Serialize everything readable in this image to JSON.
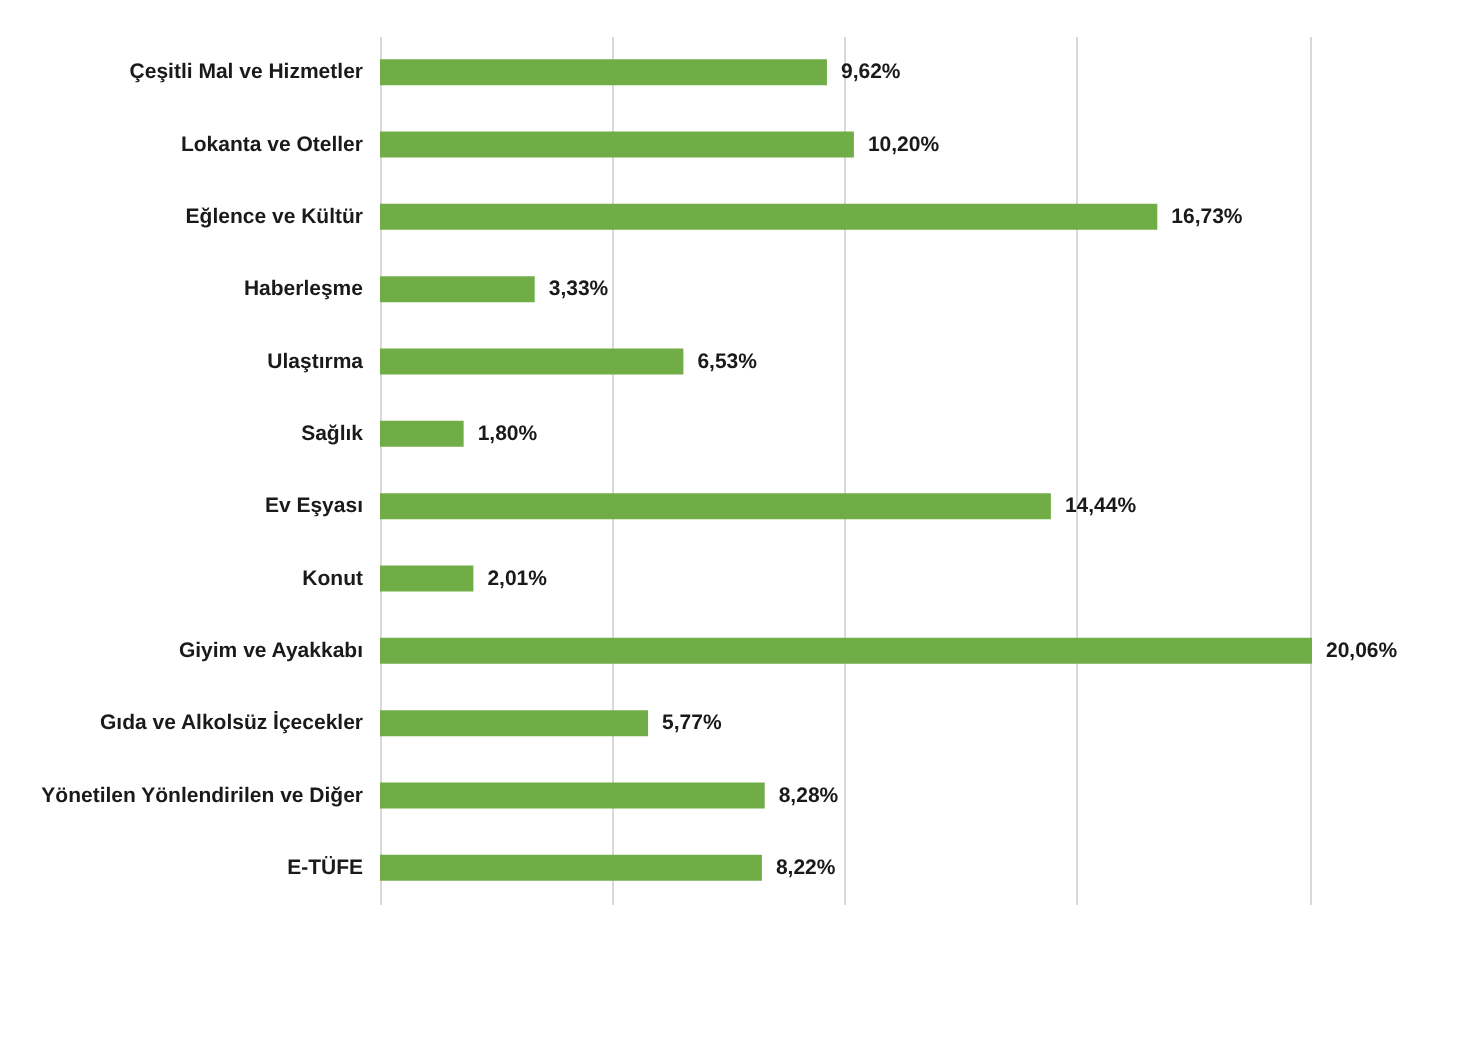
{
  "chart_data": {
    "type": "bar",
    "orientation": "horizontal",
    "categories": [
      "Çeşitli Mal ve Hizmetler",
      "Lokanta ve Oteller",
      "Eğlence ve Kültür",
      "Haberleşme",
      "Ulaştırma",
      "Sağlık",
      "Ev Eşyası",
      "Konut",
      "Giyim ve Ayakkabı",
      "Gıda ve Alkolsüz İçecekler",
      "Yönetilen Yönlendirilen ve Diğer",
      "E-TÜFE"
    ],
    "values": [
      9.62,
      10.2,
      16.73,
      3.33,
      6.53,
      1.8,
      14.44,
      2.01,
      20.06,
      5.77,
      8.28,
      8.22
    ],
    "value_labels": [
      "9,62%",
      "10,20%",
      "16,73%",
      "3,33%",
      "6,53%",
      "1,80%",
      "14,44%",
      "2,01%",
      "20,06%",
      "5,77%",
      "8,28%",
      "8,22%"
    ],
    "color": "#70ad47",
    "xticks": [
      {
        "value": 0,
        "label": null
      },
      {
        "value": 5,
        "label": null
      },
      {
        "value": 10,
        "label": null
      },
      {
        "value": 15,
        "label": null
      },
      {
        "value": 20,
        "label": null
      }
    ],
    "grid": "x",
    "tick_labels": "y"
  }
}
